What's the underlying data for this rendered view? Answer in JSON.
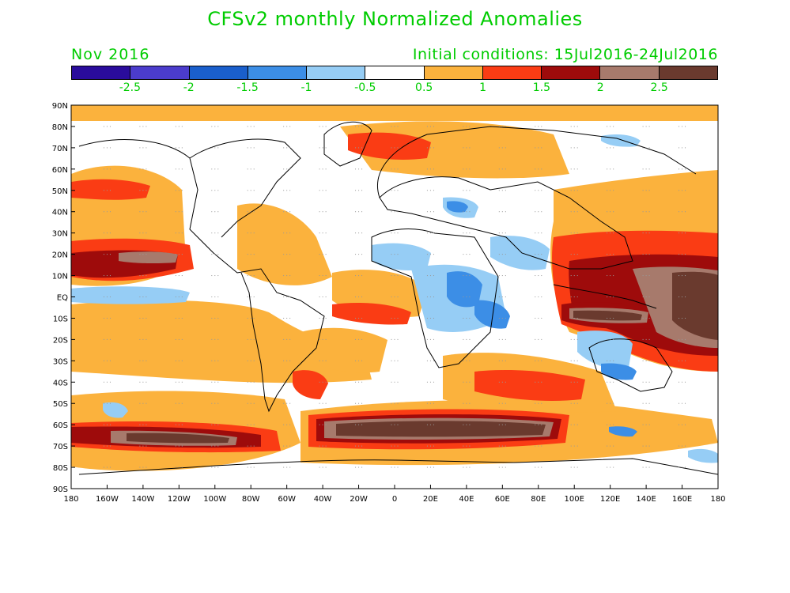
{
  "title": "CFSv2 monthly Normalized Anomalies",
  "valid_month": "Nov 2016",
  "initial_conditions": "Initial conditions: 15Jul2016-24Jul2016",
  "colorbar": {
    "colors": [
      "#2a0c9c",
      "#4b3ccc",
      "#1a5fcc",
      "#3c8ee6",
      "#96cdf5",
      "#ffffff",
      "#fbb23d",
      "#fa3c14",
      "#9e0b0b",
      "#a77a6c",
      "#6a3a2e"
    ],
    "labels": [
      "-2.5",
      "-2",
      "-1.5",
      "-1",
      "-0.5",
      "0.5",
      "1",
      "1.5",
      "2",
      "2.5"
    ]
  },
  "axes": {
    "lat_labels": [
      "90N",
      "80N",
      "70N",
      "60N",
      "50N",
      "40N",
      "30N",
      "20N",
      "10N",
      "EQ",
      "10S",
      "20S",
      "30S",
      "40S",
      "50S",
      "60S",
      "70S",
      "80S",
      "90S"
    ],
    "lon_labels": [
      "180",
      "160W",
      "140W",
      "120W",
      "100W",
      "80W",
      "60W",
      "40W",
      "20W",
      "0",
      "20E",
      "40E",
      "60E",
      "80E",
      "100E",
      "120E",
      "140E",
      "160E",
      "180"
    ]
  }
}
